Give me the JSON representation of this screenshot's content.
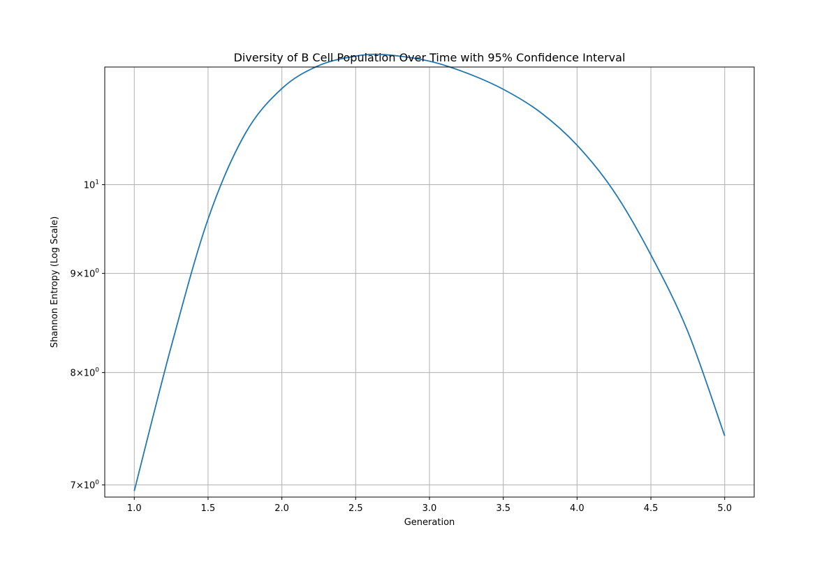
{
  "chart_data": {
    "type": "line",
    "title": "Diversity of B Cell Population Over Time with 95% Confidence Interval",
    "xlabel": "Generation",
    "ylabel": "Shannon Entropy (Log Scale)",
    "xlim": [
      0.8,
      5.2
    ],
    "ylim": [
      6.9,
      11.5
    ],
    "yscale": "log",
    "grid": true,
    "x_ticks": [
      {
        "value": 1.0,
        "label": "1.0"
      },
      {
        "value": 1.5,
        "label": "1.5"
      },
      {
        "value": 2.0,
        "label": "2.0"
      },
      {
        "value": 2.5,
        "label": "2.5"
      },
      {
        "value": 3.0,
        "label": "3.0"
      },
      {
        "value": 3.5,
        "label": "3.5"
      },
      {
        "value": 4.0,
        "label": "4.0"
      },
      {
        "value": 4.5,
        "label": "4.5"
      },
      {
        "value": 5.0,
        "label": "5.0"
      }
    ],
    "y_ticks": [
      {
        "value": 7,
        "base": "7",
        "exp": "0"
      },
      {
        "value": 8,
        "base": "8",
        "exp": "0"
      },
      {
        "value": 9,
        "base": "9",
        "exp": "0"
      },
      {
        "value": 10,
        "base": "10",
        "exp": "1"
      }
    ],
    "series": [
      {
        "color": "#1f77b4",
        "x": [
          1.0,
          1.25,
          1.5,
          1.75,
          2.0,
          2.25,
          2.5,
          2.7,
          3.0,
          3.25,
          3.5,
          3.75,
          4.0,
          4.25,
          4.5,
          4.75,
          5.0
        ],
        "y": [
          6.95,
          8.25,
          9.6,
          10.62,
          11.21,
          11.52,
          11.65,
          11.67,
          11.58,
          11.42,
          11.2,
          10.9,
          10.48,
          9.92,
          9.2,
          8.4,
          7.42
        ]
      }
    ]
  }
}
